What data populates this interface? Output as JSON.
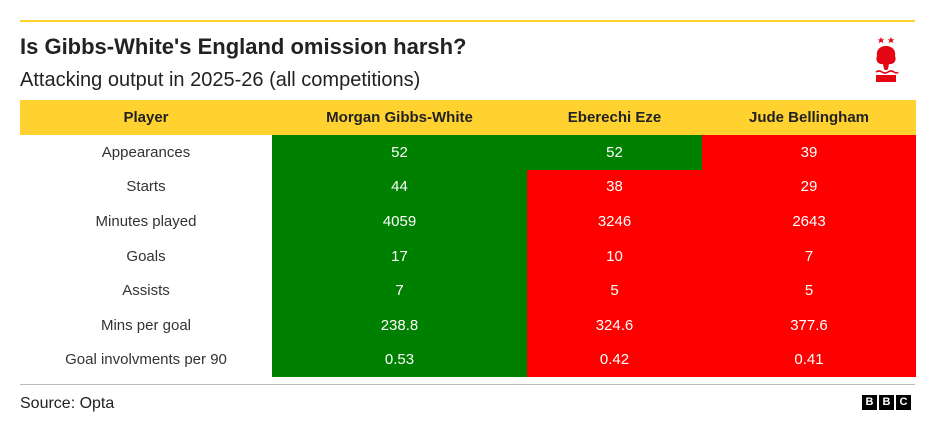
{
  "title": "Is Gibbs-White's England omission harsh?",
  "subtitle": "Attacking output in 2025-26 (all competitions)",
  "source": "Source: Opta",
  "brand": {
    "letters": [
      "B",
      "B",
      "C"
    ]
  },
  "crest": {
    "icon": "nottingham-forest-crest-icon",
    "color": "#e30613"
  },
  "colors": {
    "header": "#ffd230",
    "good": "#008000",
    "bad": "#ff0000"
  },
  "chart_data": {
    "type": "table",
    "title": "Is Gibbs-White's England omission harsh?",
    "subtitle": "Attacking output in 2025-26 (all competitions)",
    "columns": [
      "Player",
      "Morgan Gibbs-White",
      "Eberechi Eze",
      "Jude Bellingham"
    ],
    "rows": [
      {
        "label": "Appearances",
        "values": [
          "52",
          "52",
          "39"
        ],
        "status": [
          "good",
          "good",
          "bad"
        ]
      },
      {
        "label": "Starts",
        "values": [
          "44",
          "38",
          "29"
        ],
        "status": [
          "good",
          "bad",
          "bad"
        ]
      },
      {
        "label": "Minutes played",
        "values": [
          "4059",
          "3246",
          "2643"
        ],
        "status": [
          "good",
          "bad",
          "bad"
        ]
      },
      {
        "label": "Goals",
        "values": [
          "17",
          "10",
          "7"
        ],
        "status": [
          "good",
          "bad",
          "bad"
        ]
      },
      {
        "label": "Assists",
        "values": [
          "7",
          "5",
          "5"
        ],
        "status": [
          "good",
          "bad",
          "bad"
        ]
      },
      {
        "label": "Mins per goal",
        "values": [
          "238.8",
          "324.6",
          "377.6"
        ],
        "status": [
          "good",
          "bad",
          "bad"
        ]
      },
      {
        "label": "Goal involvments per 90",
        "values": [
          "0.53",
          "0.42",
          "0.41"
        ],
        "status": [
          "good",
          "bad",
          "bad"
        ]
      }
    ]
  }
}
